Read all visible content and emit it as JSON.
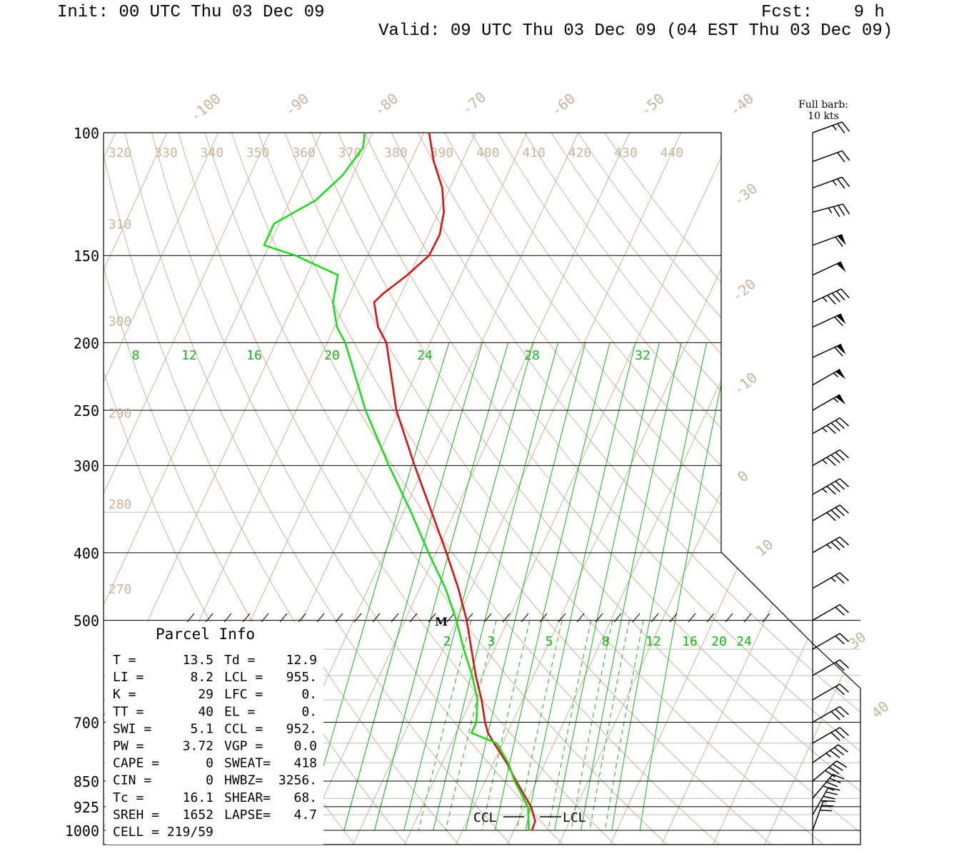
{
  "header": {
    "init": "Init: 00 UTC Thu 03 Dec 09",
    "fcst": "Fcst:    9 h",
    "valid": "Valid: 09 UTC Thu 03 Dec 09 (04 EST Thu 03 Dec 09)"
  },
  "barb_legend": {
    "line1": "Full barb:",
    "line2": "10 kts"
  },
  "parcel_info": {
    "title": "Parcel Info",
    "rows": [
      [
        "T  =",
        "13.5",
        "Td =",
        "12.9"
      ],
      [
        "LI =",
        "8.2",
        "LCL =",
        "955."
      ],
      [
        "K  =",
        "29",
        "LFC =",
        "0."
      ],
      [
        "TT =",
        "40",
        "EL  =",
        "0."
      ],
      [
        "SWI =",
        "5.1",
        "CCL =",
        "952."
      ],
      [
        "PW =",
        "3.72",
        "VGP =",
        "0.0"
      ],
      [
        "CAPE =",
        "0",
        "SWEAT=",
        "418"
      ],
      [
        "CIN  =",
        "0",
        "HWBZ=",
        "3256."
      ],
      [
        "Tc =",
        "16.1",
        "SHEAR=",
        "68."
      ],
      [
        "SREH =",
        "1652",
        "LAPSE=",
        "4.7"
      ],
      [
        "CELL = 219/59",
        "",
        "",
        ""
      ]
    ]
  },
  "markers": {
    "ccl": "CCL",
    "lcl": "LCL",
    "m": "M"
  },
  "colors": {
    "temperature": "#e01010",
    "dewpoint": "#18e018",
    "grid": "#c8b49a",
    "mixing": "#10b810",
    "isobar": "#000000"
  },
  "chart_data": {
    "type": "skew-t",
    "y_axis": {
      "label": "",
      "scale": "log",
      "range": [
        100,
        1000
      ],
      "ticks": [
        100,
        150,
        200,
        250,
        300,
        400,
        500,
        700,
        850,
        925,
        1000
      ]
    },
    "isotherm_labels": [
      -100,
      -90,
      -80,
      -70,
      -60,
      -50,
      -40,
      -30,
      -20,
      -10,
      0,
      10,
      30,
      40
    ],
    "theta_labels_top": [
      320,
      330,
      340,
      350,
      360,
      370,
      380,
      390,
      400,
      410,
      420,
      430,
      440
    ],
    "theta_labels_left": [
      {
        "theta": 310,
        "p": 135
      },
      {
        "theta": 300,
        "p": 186
      },
      {
        "theta": 290,
        "p": 252
      },
      {
        "theta": 280,
        "p": 340
      },
      {
        "theta": 270,
        "p": 450
      }
    ],
    "mixing_ratio_labels_upper": [
      8,
      12,
      16,
      20,
      24,
      28,
      32
    ],
    "mixing_ratio_labels_lower": [
      2,
      3,
      5,
      8,
      12,
      16,
      20,
      24
    ],
    "temperature": [
      {
        "p": 1000,
        "t": 13.5
      },
      {
        "p": 970,
        "t": 13.3
      },
      {
        "p": 925,
        "t": 11.2
      },
      {
        "p": 850,
        "t": 6.0
      },
      {
        "p": 800,
        "t": 2.5
      },
      {
        "p": 750,
        "t": -1.7
      },
      {
        "p": 725,
        "t": -3.8
      },
      {
        "p": 700,
        "t": -5.3
      },
      {
        "p": 650,
        "t": -8.0
      },
      {
        "p": 600,
        "t": -11.3
      },
      {
        "p": 550,
        "t": -14.5
      },
      {
        "p": 500,
        "t": -18.0
      },
      {
        "p": 450,
        "t": -22.5
      },
      {
        "p": 400,
        "t": -28.0
      },
      {
        "p": 350,
        "t": -34.5
      },
      {
        "p": 300,
        "t": -42.0
      },
      {
        "p": 250,
        "t": -50.5
      },
      {
        "p": 200,
        "t": -58.5
      },
      {
        "p": 190,
        "t": -61.5
      },
      {
        "p": 175,
        "t": -64.5
      },
      {
        "p": 170,
        "t": -63.5
      },
      {
        "p": 160,
        "t": -60.5
      },
      {
        "p": 150,
        "t": -58.0
      },
      {
        "p": 140,
        "t": -57.8
      },
      {
        "p": 130,
        "t": -59.0
      },
      {
        "p": 120,
        "t": -61.5
      },
      {
        "p": 110,
        "t": -65.5
      },
      {
        "p": 100,
        "t": -69.0
      }
    ],
    "dewpoint": [
      {
        "p": 1000,
        "t": 12.9
      },
      {
        "p": 970,
        "t": 12.0
      },
      {
        "p": 925,
        "t": 10.6
      },
      {
        "p": 850,
        "t": 5.7
      },
      {
        "p": 800,
        "t": 2.8
      },
      {
        "p": 750,
        "t": -1.2
      },
      {
        "p": 725,
        "t": -7.0
      },
      {
        "p": 700,
        "t": -7.0
      },
      {
        "p": 650,
        "t": -8.8
      },
      {
        "p": 600,
        "t": -12.0
      },
      {
        "p": 550,
        "t": -16.0
      },
      {
        "p": 500,
        "t": -20.0
      },
      {
        "p": 450,
        "t": -25.0
      },
      {
        "p": 400,
        "t": -31.5
      },
      {
        "p": 350,
        "t": -38.5
      },
      {
        "p": 300,
        "t": -47.0
      },
      {
        "p": 250,
        "t": -56.5
      },
      {
        "p": 200,
        "t": -66.5
      },
      {
        "p": 190,
        "t": -69.5
      },
      {
        "p": 175,
        "t": -72.5
      },
      {
        "p": 160,
        "t": -74.0
      },
      {
        "p": 150,
        "t": -84.0
      },
      {
        "p": 145,
        "t": -91.0
      },
      {
        "p": 135,
        "t": -91.0
      },
      {
        "p": 125,
        "t": -85.0
      },
      {
        "p": 115,
        "t": -82.0
      },
      {
        "p": 105,
        "t": -80.5
      },
      {
        "p": 100,
        "t": -81.5
      }
    ],
    "wind": [
      {
        "p": 100,
        "dir": 250,
        "spd": 25
      },
      {
        "p": 110,
        "dir": 250,
        "spd": 20
      },
      {
        "p": 120,
        "dir": 250,
        "spd": 25
      },
      {
        "p": 130,
        "dir": 255,
        "spd": 35
      },
      {
        "p": 145,
        "dir": 250,
        "spd": 60
      },
      {
        "p": 160,
        "dir": 245,
        "spd": 50
      },
      {
        "p": 175,
        "dir": 245,
        "spd": 45
      },
      {
        "p": 190,
        "dir": 245,
        "spd": 60
      },
      {
        "p": 210,
        "dir": 245,
        "spd": 60
      },
      {
        "p": 230,
        "dir": 240,
        "spd": 55
      },
      {
        "p": 250,
        "dir": 240,
        "spd": 55
      },
      {
        "p": 270,
        "dir": 240,
        "spd": 45
      },
      {
        "p": 300,
        "dir": 240,
        "spd": 45
      },
      {
        "p": 330,
        "dir": 240,
        "spd": 45
      },
      {
        "p": 360,
        "dir": 240,
        "spd": 40
      },
      {
        "p": 400,
        "dir": 240,
        "spd": 35
      },
      {
        "p": 450,
        "dir": 240,
        "spd": 25
      },
      {
        "p": 500,
        "dir": 240,
        "spd": 20
      },
      {
        "p": 550,
        "dir": 240,
        "spd": 20
      },
      {
        "p": 600,
        "dir": 240,
        "spd": 20
      },
      {
        "p": 650,
        "dir": 240,
        "spd": 20
      },
      {
        "p": 700,
        "dir": 240,
        "spd": 30
      },
      {
        "p": 750,
        "dir": 240,
        "spd": 30
      },
      {
        "p": 800,
        "dir": 235,
        "spd": 35
      },
      {
        "p": 850,
        "dir": 230,
        "spd": 40
      },
      {
        "p": 900,
        "dir": 220,
        "spd": 40
      },
      {
        "p": 950,
        "dir": 210,
        "spd": 35
      },
      {
        "p": 1000,
        "dir": 200,
        "spd": 30
      }
    ]
  }
}
